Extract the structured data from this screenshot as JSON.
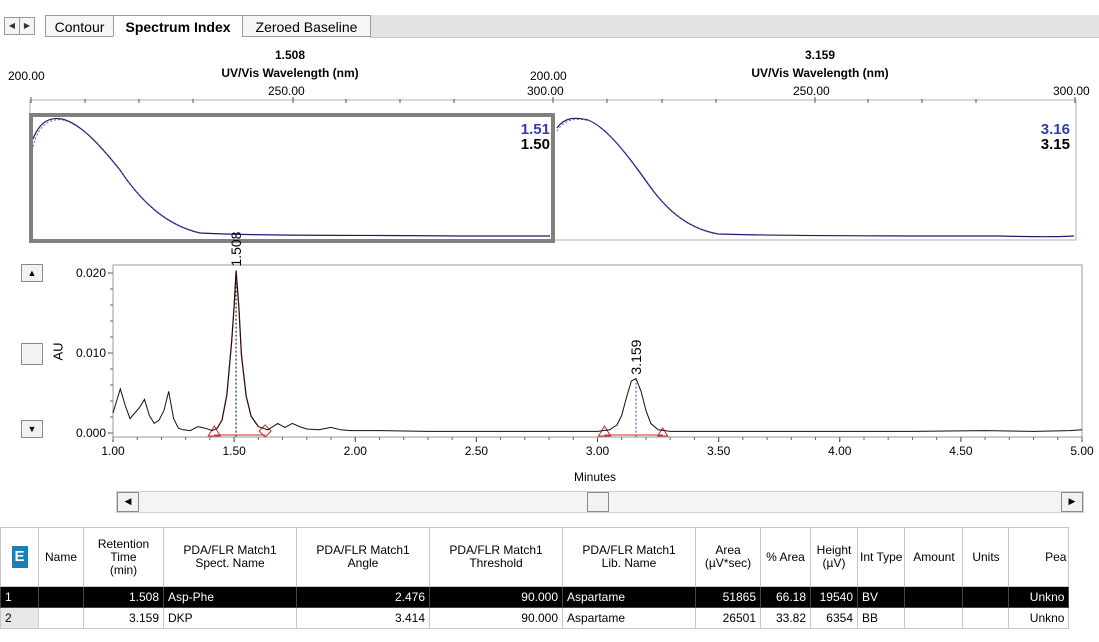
{
  "tabs": {
    "items": [
      "Contour",
      "Spectrum Index",
      "Zeroed Baseline"
    ]
  },
  "spectra": [
    {
      "peak_label": "1.508",
      "axis_title": "UV/Vis Wavelength (nm)",
      "x_ticks": [
        "200.00",
        "250.00",
        "300.00"
      ],
      "match_top": "1.51",
      "match_bottom": "1.50"
    },
    {
      "peak_label": "3.159",
      "axis_title": "UV/Vis Wavelength (nm)",
      "x_ticks": [
        "200.00",
        "250.00",
        "300.00"
      ],
      "match_top": "3.16",
      "match_bottom": "3.15"
    }
  ],
  "chromatogram": {
    "y_label": "AU",
    "x_label": "Minutes"
  },
  "chart_data": {
    "type": "line",
    "title": "",
    "xlabel": "Minutes",
    "ylabel": "AU",
    "xlim": [
      1.0,
      5.0
    ],
    "ylim": [
      -0.0005,
      0.021
    ],
    "x_ticks": [
      "1.00",
      "1.50",
      "2.00",
      "2.50",
      "3.00",
      "3.50",
      "4.00",
      "4.50",
      "5.00"
    ],
    "y_ticks": [
      "0.000",
      "0.010",
      "0.020"
    ],
    "peak_labels": [
      {
        "rt": 1.508,
        "label": "1.508"
      },
      {
        "rt": 3.159,
        "label": "3.159"
      }
    ],
    "x": [
      1.0,
      1.02,
      1.03,
      1.05,
      1.07,
      1.09,
      1.11,
      1.13,
      1.15,
      1.17,
      1.19,
      1.21,
      1.23,
      1.25,
      1.27,
      1.29,
      1.32,
      1.35,
      1.38,
      1.41,
      1.43,
      1.45,
      1.47,
      1.49,
      1.5,
      1.508,
      1.52,
      1.53,
      1.55,
      1.57,
      1.6,
      1.64,
      1.68,
      1.71,
      1.74,
      1.77,
      1.8,
      1.85,
      1.9,
      1.94,
      1.98,
      2.1,
      2.3,
      2.5,
      2.7,
      2.9,
      3.0,
      3.05,
      3.08,
      3.1,
      3.12,
      3.14,
      3.159,
      3.18,
      3.2,
      3.22,
      3.25,
      3.3,
      3.5,
      3.7,
      4.0,
      4.3,
      4.6,
      4.8,
      4.95,
      5.0
    ],
    "y": [
      0.0025,
      0.0045,
      0.0055,
      0.0035,
      0.0018,
      0.0025,
      0.0032,
      0.0042,
      0.0022,
      0.0012,
      0.0016,
      0.0028,
      0.0052,
      0.0018,
      0.0006,
      0.0004,
      0.0003,
      0.0008,
      0.0006,
      0.0003,
      0.0006,
      0.0016,
      0.0048,
      0.0115,
      0.0158,
      0.0203,
      0.0155,
      0.0098,
      0.0046,
      0.0021,
      0.0008,
      0.0004,
      0.0012,
      0.0007,
      0.0012,
      0.0008,
      0.0005,
      0.0004,
      0.0007,
      0.0004,
      0.0003,
      0.0003,
      0.0002,
      0.0002,
      0.0002,
      0.0002,
      0.0002,
      0.0004,
      0.001,
      0.0022,
      0.0045,
      0.0065,
      0.0068,
      0.0052,
      0.0028,
      0.0012,
      0.0004,
      0.0002,
      0.0002,
      0.0002,
      0.0002,
      0.0002,
      0.0003,
      0.0002,
      0.0003,
      0.0004
    ]
  },
  "table": {
    "headers": [
      "Name",
      "Retention\nTime\n(min)",
      "PDA/FLR Match1\nSpect. Name",
      "PDA/FLR Match1\nAngle",
      "PDA/FLR Match1\nThreshold",
      "PDA/FLR Match1\nLib. Name",
      "Area\n(µV*sec)",
      "% Area",
      "Height\n(µV)",
      "Int Type",
      "Amount",
      "Units",
      "Pea"
    ],
    "rows": [
      [
        "1",
        "",
        "1.508",
        "Asp-Phe",
        "2.476",
        "90.000",
        "Aspartame",
        "51865",
        "66.18",
        "19540",
        "BV",
        "",
        "",
        "Unkno"
      ],
      [
        "2",
        "",
        "3.159",
        "DKP",
        "3.414",
        "90.000",
        "Aspartame",
        "26501",
        "33.82",
        "6354",
        "BB",
        "",
        "",
        "Unkno"
      ]
    ]
  },
  "colors": {
    "peak_highlight": "#cc2b2b",
    "spectrum_line": "#1a1a6e",
    "match_blue": "#2e3fa8",
    "selection_border": "#808080"
  }
}
